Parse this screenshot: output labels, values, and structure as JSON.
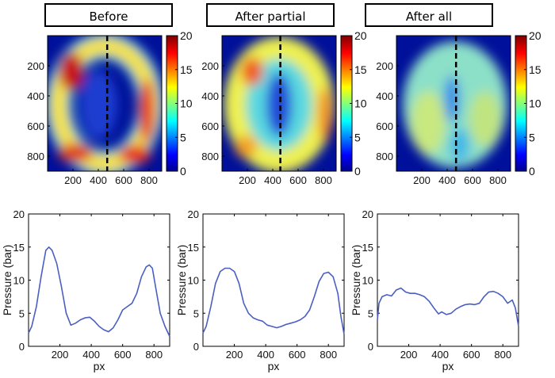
{
  "panel_titles": [
    "Before",
    "After partial",
    "After all"
  ],
  "chart_data": [
    {
      "type": "heatmap",
      "title": "Before",
      "x_ticks": [
        200,
        400,
        600,
        800
      ],
      "y_ticks": [
        200,
        400,
        600,
        800
      ],
      "colorbar_ticks": [
        0,
        5,
        10,
        15,
        20
      ],
      "clim": [
        0,
        20
      ],
      "cut_line_x": 470,
      "colormap": "jet"
    },
    {
      "type": "heatmap",
      "title": "After partial",
      "x_ticks": [
        200,
        400,
        600,
        800
      ],
      "y_ticks": [
        200,
        400,
        600,
        800
      ],
      "colorbar_ticks": [
        0,
        5,
        10,
        15,
        20
      ],
      "clim": [
        0,
        20
      ],
      "cut_line_x": 460,
      "colormap": "jet"
    },
    {
      "type": "heatmap",
      "title": "After all",
      "x_ticks": [
        200,
        400,
        600,
        800
      ],
      "y_ticks": [
        200,
        400,
        600,
        800
      ],
      "colorbar_ticks": [
        0,
        5,
        10,
        15,
        20
      ],
      "clim": [
        0,
        20
      ],
      "cut_line_x": 470,
      "colormap": "jet"
    },
    {
      "type": "line",
      "xlabel": "px",
      "ylabel": "Pressure (bar)",
      "xlim": [
        0,
        900
      ],
      "ylim": [
        0,
        20
      ],
      "x_ticks": [
        200,
        400,
        600,
        800
      ],
      "y_ticks": [
        0,
        5,
        10,
        15,
        20
      ],
      "color": "#4a5fc1",
      "x": [
        0,
        20,
        50,
        80,
        110,
        130,
        150,
        180,
        210,
        240,
        270,
        300,
        330,
        360,
        390,
        420,
        450,
        480,
        510,
        540,
        570,
        600,
        630,
        660,
        690,
        720,
        750,
        770,
        790,
        810,
        840,
        870,
        900
      ],
      "y": [
        2.0,
        3.0,
        6.0,
        10.5,
        14.5,
        15.0,
        14.5,
        12.5,
        9.0,
        5.0,
        3.2,
        3.5,
        4.0,
        4.3,
        4.4,
        3.8,
        3.0,
        2.5,
        2.2,
        2.8,
        4.0,
        5.5,
        6.0,
        6.5,
        8.0,
        10.5,
        12.0,
        12.3,
        11.8,
        9.0,
        5.0,
        3.0,
        1.5
      ]
    },
    {
      "type": "line",
      "xlabel": "px",
      "ylabel": "Pressure (bar)",
      "xlim": [
        0,
        900
      ],
      "ylim": [
        0,
        20
      ],
      "x_ticks": [
        200,
        400,
        600,
        800
      ],
      "y_ticks": [
        0,
        5,
        10,
        15,
        20
      ],
      "color": "#4a5fc1",
      "x": [
        0,
        20,
        50,
        80,
        110,
        140,
        170,
        200,
        230,
        260,
        290,
        320,
        350,
        380,
        410,
        440,
        470,
        500,
        530,
        560,
        590,
        620,
        650,
        680,
        710,
        740,
        770,
        800,
        830,
        860,
        880,
        900
      ],
      "y": [
        2.0,
        3.0,
        6.0,
        9.5,
        11.3,
        11.8,
        11.8,
        11.3,
        9.5,
        6.5,
        5.0,
        4.3,
        4.0,
        3.8,
        3.2,
        3.0,
        2.8,
        3.0,
        3.3,
        3.5,
        3.7,
        4.0,
        4.5,
        5.5,
        7.5,
        9.8,
        11.0,
        11.2,
        10.5,
        8.0,
        4.5,
        1.8
      ]
    },
    {
      "type": "line",
      "xlabel": "px",
      "ylabel": "Pressure (bar)",
      "xlim": [
        0,
        900
      ],
      "ylim": [
        0,
        20
      ],
      "x_ticks": [
        200,
        400,
        600,
        800
      ],
      "y_ticks": [
        0,
        5,
        10,
        15,
        20
      ],
      "color": "#4a5fc1",
      "x": [
        0,
        10,
        30,
        60,
        90,
        120,
        150,
        180,
        210,
        240,
        270,
        300,
        330,
        360,
        390,
        410,
        440,
        470,
        500,
        530,
        560,
        590,
        620,
        650,
        680,
        710,
        740,
        770,
        800,
        830,
        860,
        880,
        900
      ],
      "y": [
        4.0,
        6.5,
        7.5,
        7.8,
        7.6,
        8.5,
        8.8,
        8.2,
        8.0,
        8.0,
        7.8,
        7.5,
        6.8,
        5.8,
        4.9,
        5.2,
        4.8,
        5.0,
        5.6,
        6.0,
        6.3,
        6.4,
        6.3,
        6.5,
        7.5,
        8.2,
        8.3,
        8.0,
        7.5,
        6.5,
        7.0,
        5.8,
        3.0
      ]
    }
  ]
}
